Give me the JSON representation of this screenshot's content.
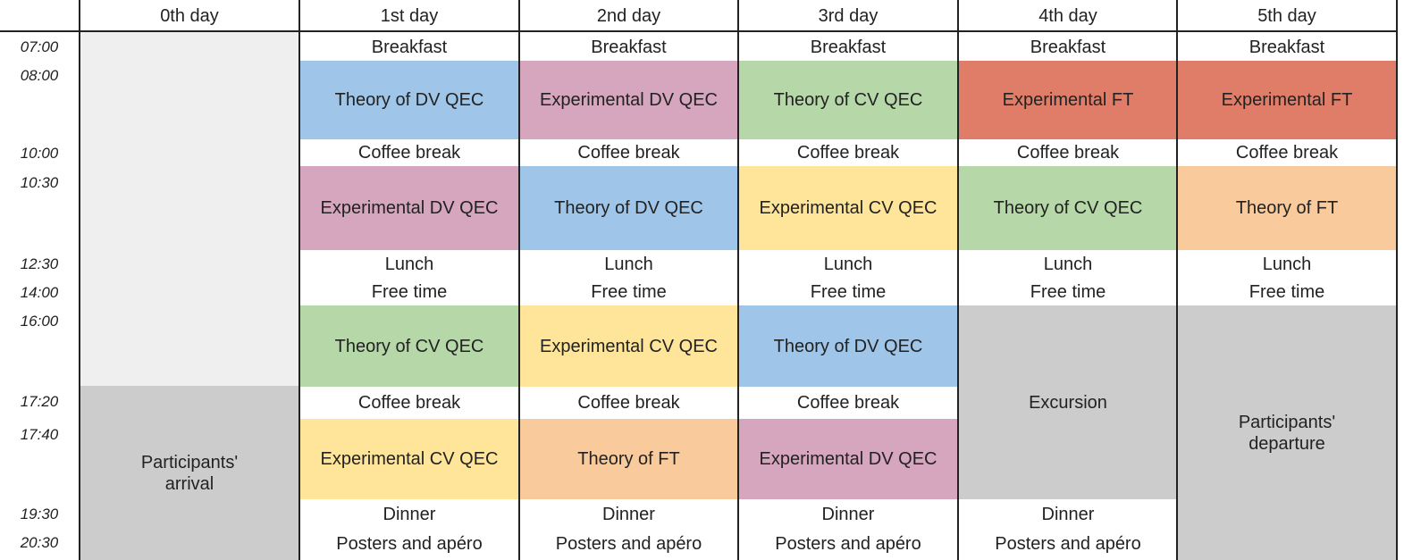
{
  "days": [
    "0th day",
    "1st day",
    "2nd day",
    "3rd day",
    "4th day",
    "5th day"
  ],
  "times": [
    "07:00",
    "08:00",
    "10:00",
    "10:30",
    "12:30",
    "14:00",
    "16:00",
    "17:20",
    "17:40",
    "19:30",
    "20:30"
  ],
  "day0": {
    "arrival": "Participants'\narrival"
  },
  "common": {
    "breakfast": "Breakfast",
    "coffee": "Coffee break",
    "lunch": "Lunch",
    "free": "Free time",
    "dinner": "Dinner",
    "posters": "Posters and apéro"
  },
  "sessions": {
    "d1_morning1": "Theory of DV QEC",
    "d1_morning2": "Experimental DV QEC",
    "d1_afternoon1": "Theory of CV QEC",
    "d1_afternoon2": "Experimental CV QEC",
    "d2_morning1": "Experimental DV QEC",
    "d2_morning2": "Theory of DV QEC",
    "d2_afternoon1": "Experimental CV QEC",
    "d2_afternoon2": "Theory of FT",
    "d3_morning1": "Theory of CV QEC",
    "d3_morning2": "Experimental CV QEC",
    "d3_afternoon1": "Theory of DV QEC",
    "d3_afternoon2": "Experimental DV QEC",
    "d4_morning1": "Experimental FT",
    "d4_morning2": "Theory of CV QEC",
    "d4_excursion": "Excursion",
    "d5_morning1": "Experimental FT",
    "d5_morning2": "Theory of FT",
    "d5_departure": "Participants'\ndeparture"
  },
  "colors": {
    "theory_dv": "#9fc5e8",
    "experimental_dv": "#d5a6bd",
    "theory_cv": "#b6d7a8",
    "experimental_cv": "#ffe599",
    "experimental_ft": "#e07d68",
    "theory_ft": "#f9cb9c",
    "grey": "#cccccc",
    "light_grey": "#efefef"
  }
}
